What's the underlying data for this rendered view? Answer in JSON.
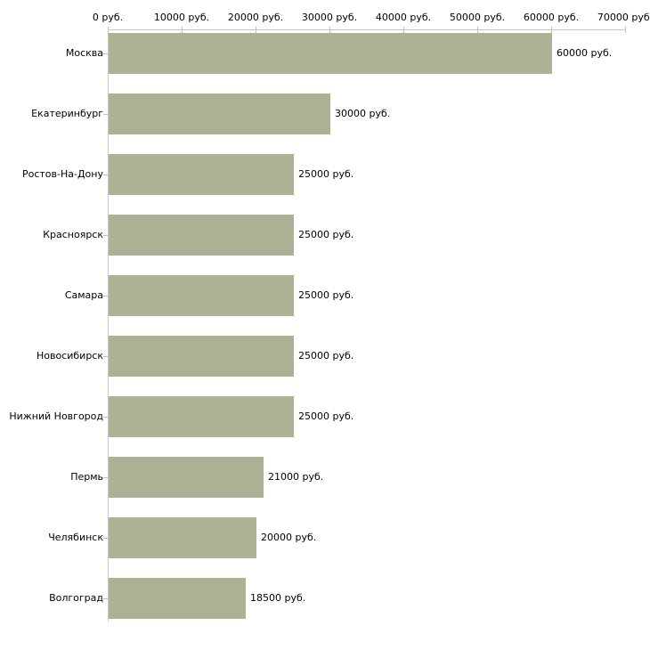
{
  "chart_data": {
    "type": "bar",
    "orientation": "horizontal",
    "title": "",
    "xlabel": "",
    "ylabel": "",
    "unit": "руб.",
    "categories": [
      "Москва",
      "Екатеринбург",
      "Ростов-На-Дону",
      "Красноярск",
      "Самара",
      "Новосибирск",
      "Нижний Новгород",
      "Пермь",
      "Челябинск",
      "Волгоград"
    ],
    "values": [
      60000,
      30000,
      25000,
      25000,
      25000,
      25000,
      25000,
      21000,
      20000,
      18500
    ],
    "value_labels": [
      "60000 руб.",
      "30000 руб.",
      "25000 руб.",
      "25000 руб.",
      "25000 руб.",
      "25000 руб.",
      "25000 руб.",
      "21000 руб.",
      "20000 руб.",
      "18500 руб."
    ],
    "xlim": [
      0,
      70000
    ],
    "x_ticks": [
      0,
      10000,
      20000,
      30000,
      40000,
      50000,
      60000,
      70000
    ],
    "x_tick_labels": [
      "0 руб.",
      "10000 руб.",
      "20000 руб.",
      "30000 руб.",
      "40000 руб.",
      "50000 руб.",
      "60000 руб.",
      "70000 руб."
    ],
    "grid": false,
    "legend": false,
    "bar_color": "#adb295",
    "axis_color": "#c6c6c6",
    "tick_color": "#c6c692",
    "text_color": "#000000"
  }
}
